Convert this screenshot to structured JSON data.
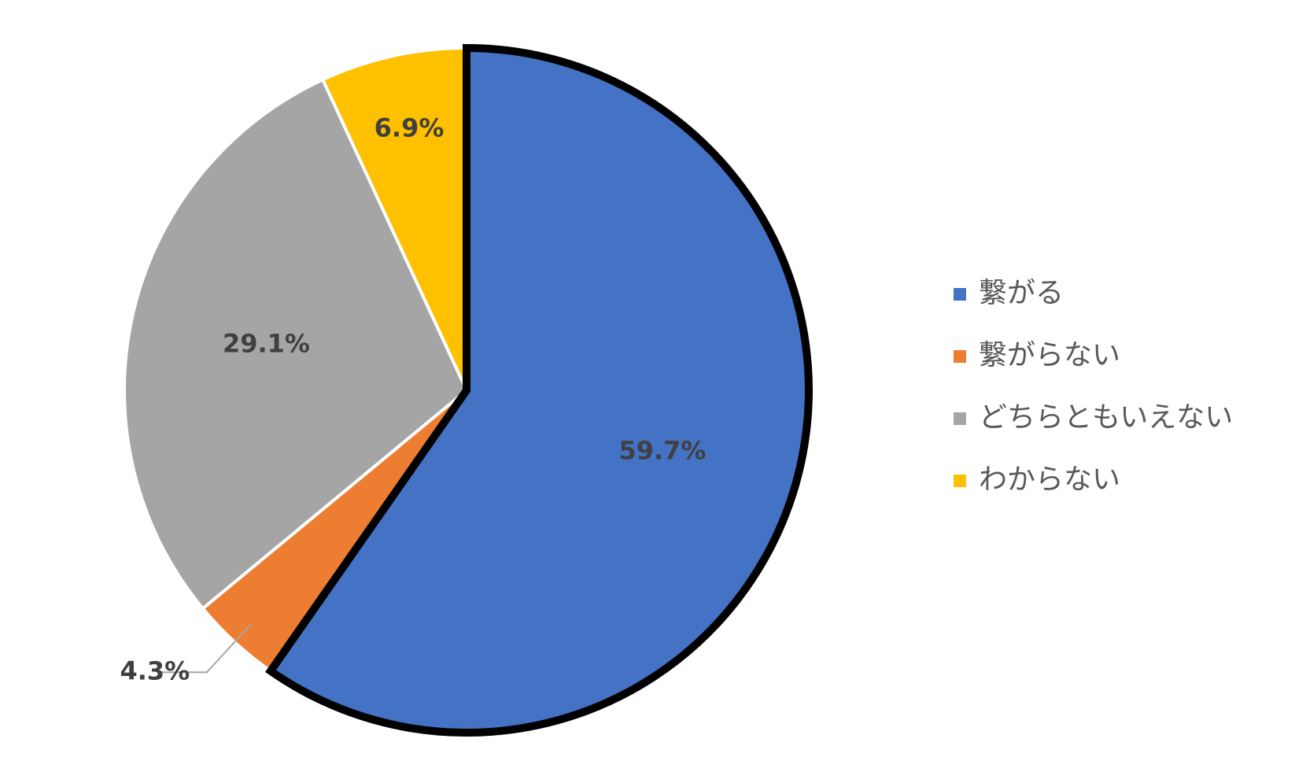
{
  "chart_data": {
    "type": "pie",
    "categories": [
      "繋がる",
      "繋がらない",
      "どちらともいえない",
      "わからない"
    ],
    "values": [
      59.7,
      4.3,
      29.1,
      6.9
    ],
    "value_labels": [
      "59.7%",
      "4.3%",
      "29.1%",
      "6.9%"
    ],
    "colors": [
      "#4472c4",
      "#ed7d31",
      "#a5a5a5",
      "#ffc000"
    ],
    "legend": "right"
  }
}
